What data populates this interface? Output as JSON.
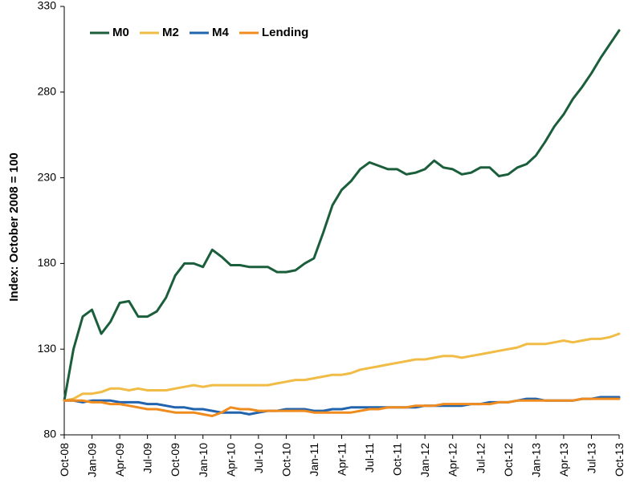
{
  "chart_data": {
    "type": "line",
    "ylabel": "Index: October 2008 = 100",
    "ylim": [
      80,
      330
    ],
    "yticks": [
      80,
      130,
      180,
      230,
      280,
      330
    ],
    "xticks": [
      "Oct-08",
      "Jan-09",
      "Apr-09",
      "Jul-09",
      "Oct-09",
      "Jan-10",
      "Apr-10",
      "Jul-10",
      "Oct-10",
      "Jan-11",
      "Apr-11",
      "Jul-11",
      "Oct-11",
      "Jan-12",
      "Apr-12",
      "Jul-12",
      "Oct-12",
      "Jan-13",
      "Apr-13",
      "Jul-13",
      "Oct-13"
    ],
    "grid": false,
    "legend_position": "top-left",
    "series": [
      {
        "name": "M0",
        "color": "#1b5e3b",
        "values": [
          100,
          130,
          149,
          153,
          139,
          146,
          157,
          158,
          149,
          149,
          152,
          160,
          173,
          180,
          180,
          178,
          188,
          184,
          179,
          179,
          178,
          178,
          178,
          175,
          175,
          176,
          180,
          183,
          198,
          214,
          223,
          228,
          235,
          239,
          237,
          235,
          235,
          232,
          233,
          235,
          240,
          236,
          235,
          232,
          233,
          236,
          236,
          231,
          232,
          236,
          238,
          243,
          251,
          260,
          267,
          276,
          283,
          291,
          300,
          308,
          316
        ]
      },
      {
        "name": "M2",
        "color": "#f0bc45",
        "values": [
          100,
          101,
          104,
          104,
          105,
          107,
          107,
          106,
          107,
          106,
          106,
          106,
          107,
          108,
          109,
          108,
          109,
          109,
          109,
          109,
          109,
          109,
          109,
          110,
          111,
          112,
          112,
          113,
          114,
          115,
          115,
          116,
          118,
          119,
          120,
          121,
          122,
          123,
          124,
          124,
          125,
          126,
          126,
          125,
          126,
          127,
          128,
          129,
          130,
          131,
          133,
          133,
          133,
          134,
          135,
          134,
          135,
          136,
          136,
          137,
          139
        ]
      },
      {
        "name": "M4",
        "color": "#2163ad",
        "values": [
          100,
          100,
          99,
          100,
          100,
          100,
          99,
          99,
          99,
          98,
          98,
          97,
          96,
          96,
          95,
          95,
          94,
          93,
          93,
          93,
          92,
          93,
          94,
          94,
          95,
          95,
          95,
          94,
          94,
          95,
          95,
          96,
          96,
          96,
          96,
          96,
          96,
          96,
          96,
          97,
          97,
          97,
          97,
          97,
          98,
          98,
          99,
          99,
          99,
          100,
          101,
          101,
          100,
          100,
          100,
          100,
          101,
          101,
          102,
          102,
          102
        ]
      },
      {
        "name": "Lending",
        "color": "#f08c1e",
        "values": [
          100,
          100,
          100,
          99,
          99,
          98,
          98,
          97,
          96,
          95,
          95,
          94,
          93,
          93,
          93,
          92,
          91,
          93,
          96,
          95,
          95,
          94,
          94,
          94,
          94,
          94,
          94,
          93,
          93,
          93,
          93,
          93,
          94,
          95,
          95,
          96,
          96,
          96,
          97,
          97,
          97,
          98,
          98,
          98,
          98,
          98,
          98,
          99,
          99,
          100,
          100,
          100,
          100,
          100,
          100,
          100,
          101,
          101,
          101,
          101,
          101
        ]
      }
    ]
  }
}
